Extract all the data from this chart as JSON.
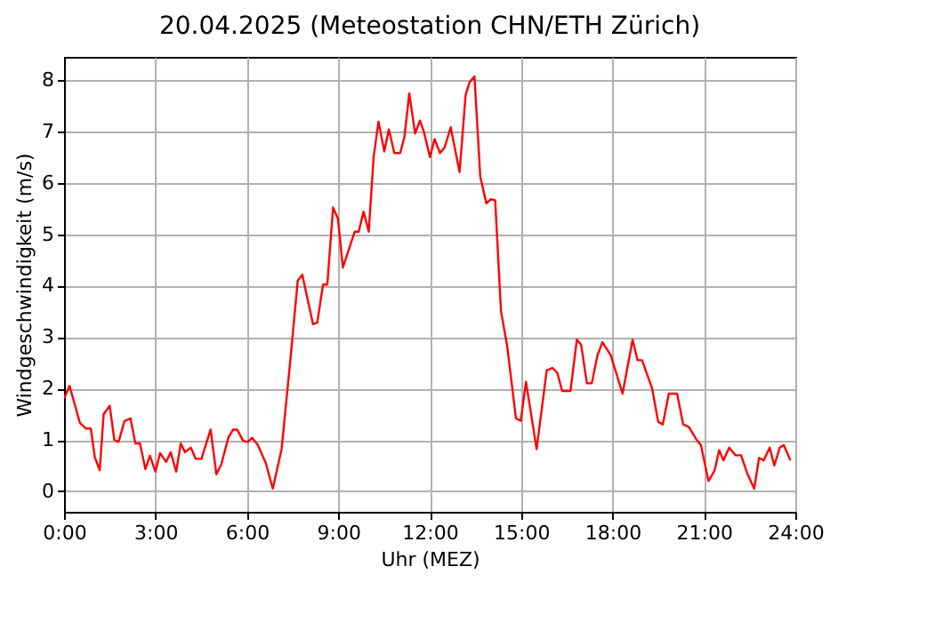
{
  "chart_data": {
    "type": "line",
    "title": "20.04.2025  (Meteostation CHN/ETH Zürich)",
    "xlabel": "Uhr (MEZ)",
    "ylabel": "Windgeschwindigkeit (m/s)",
    "xlim": [
      0,
      24
    ],
    "ylim": [
      -0.4,
      8.45
    ],
    "xticks": [
      {
        "value": 0,
        "label": "0:00"
      },
      {
        "value": 3,
        "label": "3:00"
      },
      {
        "value": 6,
        "label": "6:00"
      },
      {
        "value": 9,
        "label": "9:00"
      },
      {
        "value": 12,
        "label": "12:00"
      },
      {
        "value": 15,
        "label": "15:00"
      },
      {
        "value": 18,
        "label": "18:00"
      },
      {
        "value": 21,
        "label": "21:00"
      },
      {
        "value": 24,
        "label": "24:00"
      }
    ],
    "yticks": [
      0,
      1,
      2,
      3,
      4,
      5,
      6,
      7,
      8
    ],
    "grid": true,
    "line_style": "solid",
    "marker": "none",
    "series": [
      {
        "color": "#ff0000",
        "x": [
          0,
          0.18,
          0.52,
          0.72,
          0.88,
          1.01,
          1.17,
          1.3,
          1.5,
          1.65,
          1.79,
          1.98,
          2.18,
          2.34,
          2.49,
          2.67,
          2.82,
          3.0,
          3.15,
          3.35,
          3.5,
          3.68,
          3.83,
          3.97,
          4.16,
          4.32,
          4.51,
          4.81,
          5.0,
          5.16,
          5.39,
          5.55,
          5.68,
          5.88,
          6.03,
          6.17,
          6.36,
          6.62,
          6.85,
          7.14,
          7.43,
          7.67,
          7.82,
          8.17,
          8.31,
          8.5,
          8.64,
          8.83,
          8.99,
          9.15,
          9.54,
          9.67,
          9.83,
          10.0,
          10.16,
          10.32,
          10.51,
          10.66,
          10.84,
          11.03,
          11.17,
          11.33,
          11.52,
          11.68,
          11.81,
          12.01,
          12.16,
          12.34,
          12.49,
          12.69,
          12.98,
          13.18,
          13.31,
          13.47,
          13.66,
          13.86,
          14.01,
          14.15,
          14.34,
          14.54,
          14.83,
          14.99,
          15.16,
          15.51,
          15.84,
          16.03,
          16.19,
          16.35,
          16.62,
          16.83,
          16.97,
          17.16,
          17.32,
          17.51,
          17.67,
          17.94,
          18.33,
          18.66,
          18.82,
          18.97,
          19.3,
          19.5,
          19.65,
          19.85,
          20.12,
          20.32,
          20.51,
          20.76,
          20.9,
          21.15,
          21.35,
          21.5,
          21.64,
          21.83,
          22.03,
          22.22,
          22.42,
          22.65,
          22.81,
          22.96,
          23.16,
          23.31,
          23.49,
          23.62,
          23.84
        ],
        "values": [
          1.8,
          2.05,
          1.33,
          1.22,
          1.22,
          0.66,
          0.41,
          1.5,
          1.66,
          1.0,
          0.96,
          1.36,
          1.42,
          0.93,
          0.93,
          0.43,
          0.69,
          0.38,
          0.74,
          0.57,
          0.76,
          0.38,
          0.93,
          0.76,
          0.85,
          0.63,
          0.63,
          1.2,
          0.33,
          0.52,
          1.04,
          1.2,
          1.2,
          0.98,
          0.96,
          1.04,
          0.9,
          0.55,
          0.05,
          0.82,
          2.57,
          4.1,
          4.21,
          3.25,
          3.28,
          4.02,
          4.02,
          5.52,
          5.3,
          4.35,
          5.05,
          5.05,
          5.44,
          5.05,
          6.5,
          7.19,
          6.61,
          7.04,
          6.58,
          6.58,
          6.89,
          7.74,
          6.96,
          7.21,
          6.99,
          6.5,
          6.85,
          6.58,
          6.69,
          7.08,
          6.21,
          7.71,
          7.96,
          8.07,
          6.12,
          5.6,
          5.68,
          5.66,
          3.5,
          2.84,
          1.42,
          1.37,
          2.13,
          0.82,
          2.35,
          2.4,
          2.3,
          1.95,
          1.95,
          2.95,
          2.85,
          2.1,
          2.1,
          2.65,
          2.9,
          2.65,
          1.9,
          2.95,
          2.55,
          2.55,
          2.0,
          1.35,
          1.3,
          1.9,
          1.9,
          1.3,
          1.25,
          1.0,
          0.9,
          0.2,
          0.4,
          0.8,
          0.6,
          0.85,
          0.7,
          0.7,
          0.35,
          0.05,
          0.65,
          0.6,
          0.85,
          0.5,
          0.85,
          0.9,
          0.6
        ]
      }
    ]
  }
}
